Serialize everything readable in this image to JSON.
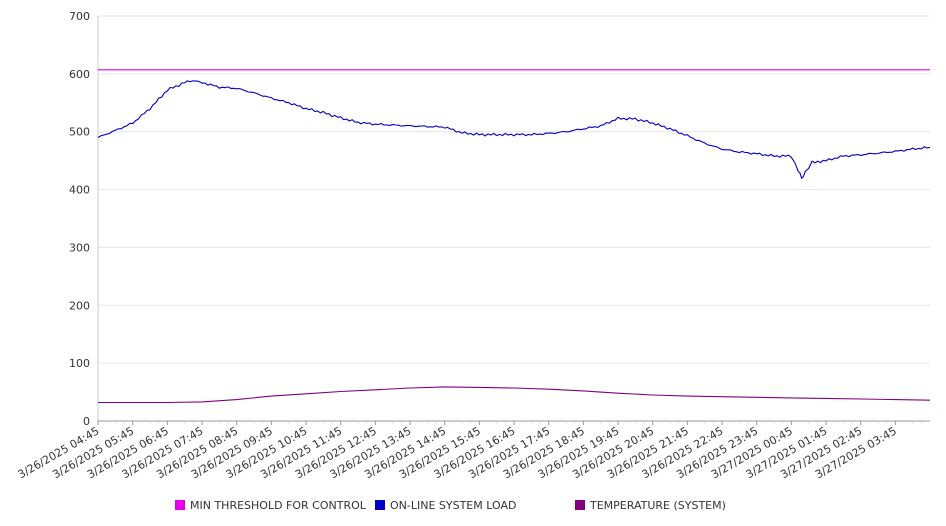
{
  "chart_data": {
    "type": "line",
    "title": "",
    "xlabel": "",
    "ylabel": "",
    "ylim": [
      0,
      700
    ],
    "yticks": [
      0,
      100,
      200,
      300,
      400,
      500,
      600,
      700
    ],
    "grid": true,
    "legend_position": "bottom",
    "categories": [
      "3/26/2025 04:45",
      "3/26/2025 05:45",
      "3/26/2025 06:45",
      "3/26/2025 07:45",
      "3/26/2025 08:45",
      "3/26/2025 09:45",
      "3/26/2025 10:45",
      "3/26/2025 11:45",
      "3/26/2025 12:45",
      "3/26/2025 13:45",
      "3/26/2025 14:45",
      "3/26/2025 15:45",
      "3/26/2025 16:45",
      "3/26/2025 17:45",
      "3/26/2025 18:45",
      "3/26/2025 19:45",
      "3/26/2025 20:45",
      "3/26/2025 21:45",
      "3/26/2025 22:45",
      "3/26/2025 23:45",
      "3/27/2025 00:45",
      "3/27/2025 01:45",
      "3/27/2025 02:45",
      "3/27/2025 03:45"
    ],
    "series": [
      {
        "name": "MIN THRESHOLD FOR CONTROL",
        "color": "#e600e6",
        "x": [
          0,
          24
        ],
        "values": [
          607,
          607
        ]
      },
      {
        "name": "ON-LINE SYSTEM LOAD",
        "color": "#0000c8",
        "x": [
          0,
          0.5,
          1,
          1.5,
          2,
          2.5,
          2.8,
          3,
          3.5,
          4,
          4.5,
          5,
          5.5,
          6,
          6.5,
          7,
          7.5,
          8,
          9,
          10,
          10.5,
          11,
          11.5,
          12,
          12.5,
          13,
          13.5,
          14,
          14.5,
          15,
          15.5,
          16,
          16.5,
          17,
          17.5,
          18,
          18.5,
          19,
          19.5,
          20,
          20.2,
          20.3,
          20.4,
          20.6,
          21,
          21.5,
          22,
          22.5,
          23,
          23.5,
          24
        ],
        "values": [
          490,
          502,
          515,
          540,
          572,
          585,
          588,
          585,
          577,
          575,
          567,
          558,
          550,
          540,
          533,
          524,
          516,
          513,
          510,
          508,
          498,
          495,
          495,
          495,
          495,
          497,
          500,
          505,
          510,
          523,
          522,
          515,
          505,
          493,
          480,
          470,
          465,
          462,
          458,
          458,
          432,
          420,
          430,
          447,
          450,
          458,
          460,
          463,
          466,
          470,
          473
        ]
      },
      {
        "name": "TEMPERATURE (SYSTEM)",
        "color": "#800080",
        "x": [
          0,
          1,
          2,
          3,
          4,
          5,
          6,
          7,
          8,
          9,
          10,
          11,
          12,
          13,
          14,
          15,
          16,
          17,
          18,
          19,
          20,
          21,
          22,
          23,
          24
        ],
        "values": [
          32,
          32,
          32,
          33,
          37,
          43,
          47,
          51,
          54,
          57,
          59,
          58,
          57,
          55,
          52,
          48,
          45,
          43,
          42,
          41,
          40,
          39,
          38,
          37,
          36
        ]
      }
    ]
  }
}
